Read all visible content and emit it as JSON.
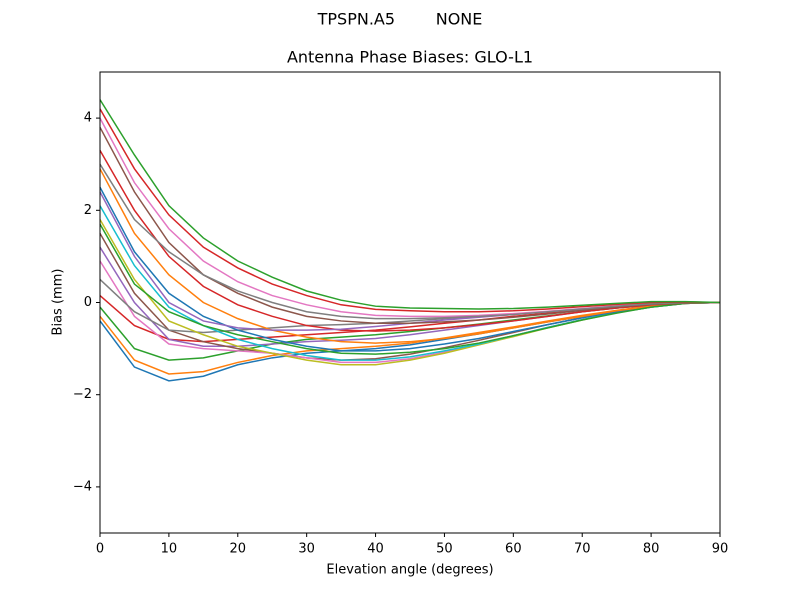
{
  "chart_data": {
    "type": "line",
    "suptitle": "TPSPN.A5        NONE",
    "title": "Antenna Phase Biases: GLO-L1",
    "xlabel": "Elevation angle (degrees)",
    "ylabel": "Bias (mm)",
    "x": [
      0,
      5,
      10,
      15,
      20,
      25,
      30,
      35,
      40,
      45,
      50,
      55,
      60,
      65,
      70,
      75,
      80,
      85,
      90
    ],
    "xlim": [
      0,
      90
    ],
    "ylim": [
      -5,
      5
    ],
    "xticks": [
      0,
      10,
      20,
      30,
      40,
      50,
      60,
      70,
      80,
      90
    ],
    "yticks": [
      {
        "value": -4,
        "label": "−4"
      },
      {
        "value": -2,
        "label": "−2"
      },
      0,
      2,
      4
    ],
    "series": [
      {
        "color": "#1f77b4",
        "values": [
          -0.4,
          -1.4,
          -1.7,
          -1.6,
          -1.35,
          -1.2,
          -1.1,
          -1.05,
          -1.0,
          -0.92,
          -0.8,
          -0.68,
          -0.55,
          -0.42,
          -0.3,
          -0.18,
          -0.08,
          -0.02,
          0
        ]
      },
      {
        "color": "#ff7f0e",
        "values": [
          -0.3,
          -1.25,
          -1.55,
          -1.5,
          -1.3,
          -1.15,
          -1.05,
          -1.0,
          -0.95,
          -0.88,
          -0.77,
          -0.65,
          -0.53,
          -0.4,
          -0.28,
          -0.17,
          -0.07,
          -0.01,
          0
        ]
      },
      {
        "color": "#2ca02c",
        "values": [
          -0.1,
          -1.0,
          -1.25,
          -1.2,
          -1.05,
          -0.9,
          -0.8,
          -0.75,
          -0.7,
          -0.63,
          -0.55,
          -0.47,
          -0.38,
          -0.29,
          -0.2,
          -0.12,
          -0.05,
          0,
          0
        ]
      },
      {
        "color": "#d62728",
        "values": [
          0.15,
          -0.5,
          -0.8,
          -0.85,
          -0.8,
          -0.75,
          -0.7,
          -0.65,
          -0.6,
          -0.53,
          -0.45,
          -0.38,
          -0.3,
          -0.23,
          -0.16,
          -0.1,
          -0.04,
          0,
          0
        ]
      },
      {
        "color": "#9467bd",
        "values": [
          1.2,
          0.0,
          -0.8,
          -0.95,
          -0.95,
          -0.9,
          -0.85,
          -0.82,
          -0.78,
          -0.7,
          -0.6,
          -0.5,
          -0.4,
          -0.3,
          -0.2,
          -0.12,
          -0.05,
          0,
          0
        ]
      },
      {
        "color": "#8c564b",
        "values": [
          1.5,
          0.2,
          -0.6,
          -0.85,
          -1.0,
          -1.1,
          -1.2,
          -1.25,
          -1.22,
          -1.12,
          -0.98,
          -0.82,
          -0.65,
          -0.48,
          -0.33,
          -0.19,
          -0.08,
          -0.01,
          0
        ]
      },
      {
        "color": "#e377c2",
        "values": [
          0.9,
          -0.3,
          -0.9,
          -1.0,
          -1.05,
          -1.1,
          -1.2,
          -1.3,
          -1.3,
          -1.22,
          -1.08,
          -0.9,
          -0.72,
          -0.54,
          -0.37,
          -0.22,
          -0.1,
          -0.02,
          0
        ]
      },
      {
        "color": "#7f7f7f",
        "values": [
          0.5,
          -0.2,
          -0.6,
          -0.65,
          -0.6,
          -0.55,
          -0.5,
          -0.48,
          -0.45,
          -0.4,
          -0.35,
          -0.3,
          -0.25,
          -0.2,
          -0.14,
          -0.08,
          -0.03,
          0,
          0
        ]
      },
      {
        "color": "#bcbd22",
        "values": [
          1.8,
          0.5,
          -0.4,
          -0.7,
          -0.95,
          -1.1,
          -1.25,
          -1.35,
          -1.35,
          -1.25,
          -1.1,
          -0.92,
          -0.74,
          -0.55,
          -0.38,
          -0.22,
          -0.1,
          -0.02,
          0
        ]
      },
      {
        "color": "#17becf",
        "values": [
          2.1,
          0.8,
          -0.1,
          -0.5,
          -0.8,
          -1.0,
          -1.15,
          -1.25,
          -1.25,
          -1.18,
          -1.05,
          -0.9,
          -0.72,
          -0.54,
          -0.37,
          -0.22,
          -0.1,
          -0.02,
          0
        ]
      },
      {
        "color": "#1f77b4",
        "values": [
          2.5,
          1.1,
          0.2,
          -0.3,
          -0.6,
          -0.8,
          -0.95,
          -1.05,
          -1.05,
          -1.0,
          -0.9,
          -0.78,
          -0.63,
          -0.48,
          -0.33,
          -0.2,
          -0.09,
          -0.02,
          0
        ]
      },
      {
        "color": "#ff7f0e",
        "values": [
          2.9,
          1.5,
          0.6,
          0.0,
          -0.35,
          -0.6,
          -0.75,
          -0.85,
          -0.88,
          -0.85,
          -0.78,
          -0.68,
          -0.55,
          -0.42,
          -0.3,
          -0.18,
          -0.08,
          -0.02,
          0
        ]
      },
      {
        "color": "#2ca02c",
        "values": [
          1.7,
          0.4,
          -0.2,
          -0.5,
          -0.7,
          -0.85,
          -1.0,
          -1.1,
          -1.12,
          -1.08,
          -1.0,
          -0.88,
          -0.72,
          -0.55,
          -0.38,
          -0.23,
          -0.1,
          -0.02,
          0
        ]
      },
      {
        "color": "#d62728",
        "values": [
          3.3,
          2.0,
          1.0,
          0.35,
          -0.05,
          -0.3,
          -0.5,
          -0.6,
          -0.62,
          -0.6,
          -0.55,
          -0.48,
          -0.4,
          -0.3,
          -0.2,
          -0.12,
          -0.05,
          -0.01,
          0
        ]
      },
      {
        "color": "#9467bd",
        "values": [
          2.4,
          1.0,
          0.0,
          -0.4,
          -0.55,
          -0.6,
          -0.6,
          -0.58,
          -0.52,
          -0.45,
          -0.38,
          -0.32,
          -0.26,
          -0.2,
          -0.14,
          -0.08,
          -0.03,
          0,
          0
        ]
      },
      {
        "color": "#8c564b",
        "values": [
          3.8,
          2.4,
          1.3,
          0.6,
          0.2,
          -0.1,
          -0.3,
          -0.4,
          -0.45,
          -0.45,
          -0.42,
          -0.38,
          -0.32,
          -0.25,
          -0.17,
          -0.1,
          -0.04,
          -0.01,
          0
        ]
      },
      {
        "color": "#e377c2",
        "values": [
          4.0,
          2.6,
          1.6,
          0.9,
          0.45,
          0.15,
          -0.05,
          -0.2,
          -0.28,
          -0.3,
          -0.3,
          -0.28,
          -0.24,
          -0.19,
          -0.13,
          -0.07,
          -0.02,
          0.01,
          0
        ]
      },
      {
        "color": "#7f7f7f",
        "values": [
          3.0,
          1.8,
          1.1,
          0.6,
          0.25,
          0.0,
          -0.2,
          -0.3,
          -0.35,
          -0.35,
          -0.33,
          -0.3,
          -0.26,
          -0.2,
          -0.14,
          -0.08,
          -0.03,
          0,
          0
        ]
      },
      {
        "color": "#d62728",
        "values": [
          4.2,
          2.9,
          1.9,
          1.2,
          0.75,
          0.4,
          0.15,
          -0.05,
          -0.15,
          -0.18,
          -0.2,
          -0.2,
          -0.18,
          -0.14,
          -0.09,
          -0.04,
          0,
          0.01,
          0
        ]
      },
      {
        "color": "#2ca02c",
        "values": [
          4.4,
          3.2,
          2.1,
          1.4,
          0.9,
          0.55,
          0.25,
          0.05,
          -0.08,
          -0.12,
          -0.13,
          -0.14,
          -0.13,
          -0.1,
          -0.06,
          -0.02,
          0.02,
          0.02,
          0
        ]
      }
    ]
  }
}
